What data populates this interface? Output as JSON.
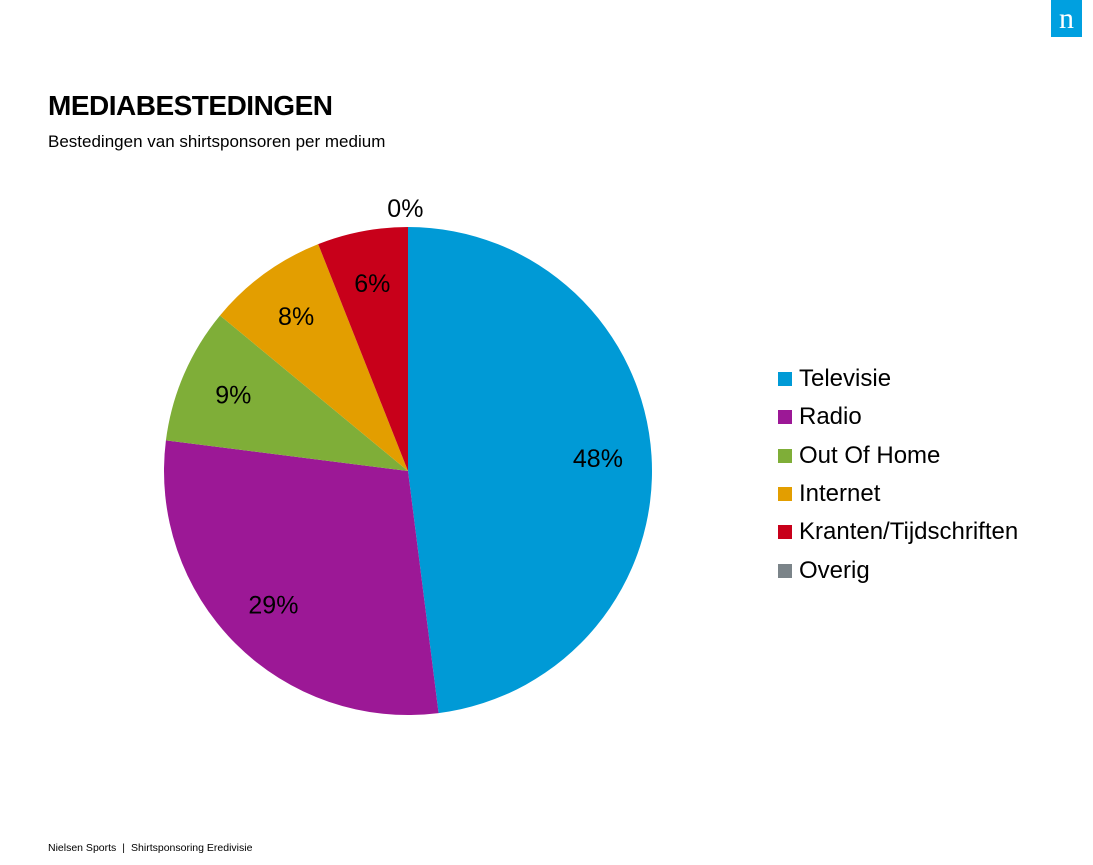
{
  "header": {
    "logo_text": "n",
    "title": "MEDIABESTEDINGEN",
    "subtitle": "Bestedingen van shirtsponsoren per medium"
  },
  "footer": {
    "left": "Nielsen Sports",
    "separator": "|",
    "right": "Shirtsponsoring Eredivisie"
  },
  "colors": {
    "logo_bg": "#00a0e0"
  },
  "chart_data": {
    "type": "pie",
    "title": "MEDIABESTEDINGEN",
    "subtitle": "Bestedingen van shirtsponsoren per medium",
    "legend_position": "right",
    "slices": [
      {
        "name": "Televisie",
        "value": 48,
        "label": "48%",
        "color": "#009ad6"
      },
      {
        "name": "Radio",
        "value": 29,
        "label": "29%",
        "color": "#9c1896"
      },
      {
        "name": "Out Of Home",
        "value": 9,
        "label": "9%",
        "color": "#7fae38"
      },
      {
        "name": "Internet",
        "value": 8,
        "label": "8%",
        "color": "#e39e00"
      },
      {
        "name": "Kranten/Tijdschriften",
        "value": 6,
        "label": "6%",
        "color": "#c8001a"
      },
      {
        "name": "Overig",
        "value": 0,
        "label": "0%",
        "color": "#7b8489"
      }
    ]
  }
}
